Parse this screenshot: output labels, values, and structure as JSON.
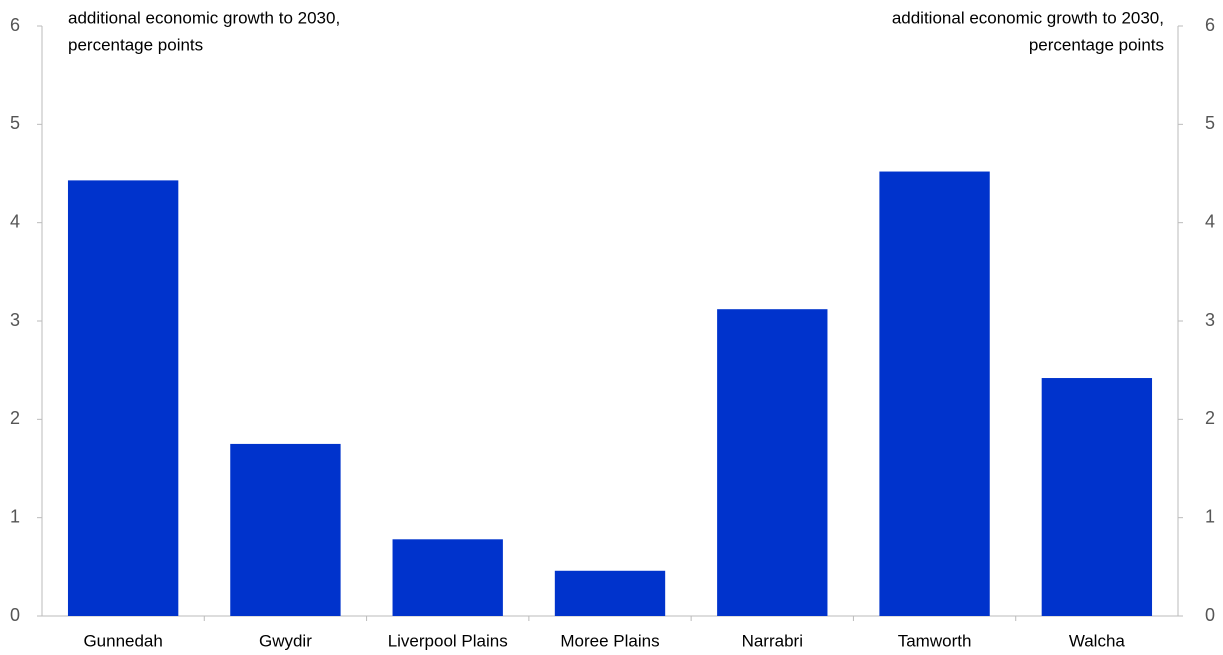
{
  "chart_data": {
    "type": "bar",
    "y_label": [
      "additional economic growth to 2030,",
      "percentage points"
    ],
    "y2_label": [
      "additional economic growth to 2030,",
      "percentage points"
    ],
    "categories": [
      "Gunnedah",
      "Gwydir",
      "Liverpool Plains",
      "Moree Plains",
      "Narrabri",
      "Tamworth",
      "Walcha"
    ],
    "values": [
      4.43,
      1.75,
      0.78,
      0.46,
      3.12,
      4.52,
      2.42
    ],
    "color": "#0033cc",
    "ylim": [
      0,
      6
    ],
    "yticks": [
      0,
      1,
      2,
      3,
      4,
      5,
      6
    ],
    "y2lim": [
      0,
      6
    ],
    "y2ticks": [
      0,
      1,
      2,
      3,
      4,
      5,
      6
    ],
    "grid": false
  }
}
